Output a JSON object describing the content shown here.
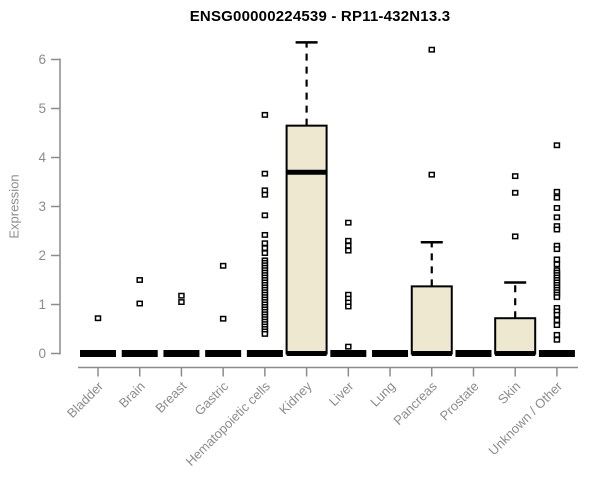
{
  "chart_data": {
    "type": "boxplot",
    "title": "ENSG00000224539 - RP11-432N13.3",
    "ylabel": "Expression",
    "xlabel": "",
    "ylim": [
      0,
      6.4
    ],
    "yticks": [
      0,
      1,
      2,
      3,
      4,
      5,
      6
    ],
    "grid": false,
    "legend": "none",
    "categories": [
      "Bladder",
      "Brain",
      "Breast",
      "Gastric",
      "Hematopoietic cells",
      "Kidney",
      "Liver",
      "Lung",
      "Pancreas",
      "Prostate",
      "Skin",
      "Unknown / Other"
    ],
    "series": [
      {
        "name": "Bladder",
        "q1": 0,
        "median": 0,
        "q3": 0,
        "whisker_low": 0,
        "whisker_high": 0,
        "outliers": [
          0.72
        ]
      },
      {
        "name": "Brain",
        "q1": 0,
        "median": 0,
        "q3": 0,
        "whisker_low": 0,
        "whisker_high": 0,
        "outliers": [
          1.5,
          1.02
        ]
      },
      {
        "name": "Breast",
        "q1": 0,
        "median": 0,
        "q3": 0,
        "whisker_low": 0,
        "whisker_high": 0,
        "outliers": [
          1.18,
          1.05
        ]
      },
      {
        "name": "Gastric",
        "q1": 0,
        "median": 0,
        "q3": 0,
        "whisker_low": 0,
        "whisker_high": 0,
        "outliers": [
          1.79,
          0.71
        ]
      },
      {
        "name": "Hematopoietic cells",
        "q1": 0,
        "median": 0,
        "q3": 0,
        "whisker_low": 0,
        "whisker_high": 0,
        "outliers": [
          4.87,
          3.67,
          3.33,
          3.24,
          2.82,
          2.42,
          2.25,
          2.15,
          2.05,
          1.9,
          1.85,
          1.8,
          1.75,
          1.7,
          1.65,
          1.6,
          1.55,
          1.5,
          1.45,
          1.4,
          1.35,
          1.3,
          1.25,
          1.2,
          1.15,
          1.1,
          1.05,
          1.0,
          0.95,
          0.9,
          0.85,
          0.8,
          0.75,
          0.7,
          0.65,
          0.6,
          0.55,
          0.5,
          0.45,
          0.4
        ]
      },
      {
        "name": "Kidney",
        "q1": 0,
        "median": 3.7,
        "q3": 4.65,
        "whisker_low": 0,
        "whisker_high": 6.35,
        "outliers": []
      },
      {
        "name": "Liver",
        "q1": 0,
        "median": 0,
        "q3": 0,
        "whisker_low": 0,
        "whisker_high": 0,
        "outliers": [
          2.67,
          2.3,
          2.2,
          2.1,
          1.2,
          1.12,
          1.04,
          0.96,
          0.14
        ]
      },
      {
        "name": "Lung",
        "q1": 0,
        "median": 0,
        "q3": 0,
        "whisker_low": 0,
        "whisker_high": 0,
        "outliers": []
      },
      {
        "name": "Pancreas",
        "q1": 0,
        "median": 0,
        "q3": 1.37,
        "whisker_low": 0,
        "whisker_high": 2.27,
        "outliers": [
          6.2,
          3.65
        ]
      },
      {
        "name": "Prostate",
        "q1": 0,
        "median": 0,
        "q3": 0,
        "whisker_low": 0,
        "whisker_high": 0,
        "outliers": []
      },
      {
        "name": "Skin",
        "q1": 0,
        "median": 0,
        "q3": 0.72,
        "whisker_low": 0,
        "whisker_high": 1.45,
        "outliers": [
          3.62,
          3.28,
          2.39
        ]
      },
      {
        "name": "Unknown / Other",
        "q1": 0,
        "median": 0,
        "q3": 0,
        "whisker_low": 0,
        "whisker_high": 0,
        "outliers": [
          4.25,
          3.3,
          3.18,
          2.97,
          2.78,
          2.6,
          2.53,
          2.2,
          2.13,
          1.92,
          1.82,
          1.7,
          1.65,
          1.6,
          1.55,
          1.5,
          1.45,
          1.4,
          1.35,
          1.3,
          1.25,
          1.2,
          1.15,
          0.93,
          0.86,
          0.79,
          0.68,
          0.58,
          0.38,
          0.28
        ]
      }
    ]
  },
  "colors": {
    "background": "#FFFFFF",
    "box_fill": "#EDE8CF",
    "box_stroke": "#000000",
    "median": "#000000",
    "outlier_stroke": "#000000",
    "axis": "#8C8C8C",
    "tick_text": "#8C8C8C",
    "title_text": "#000000"
  }
}
